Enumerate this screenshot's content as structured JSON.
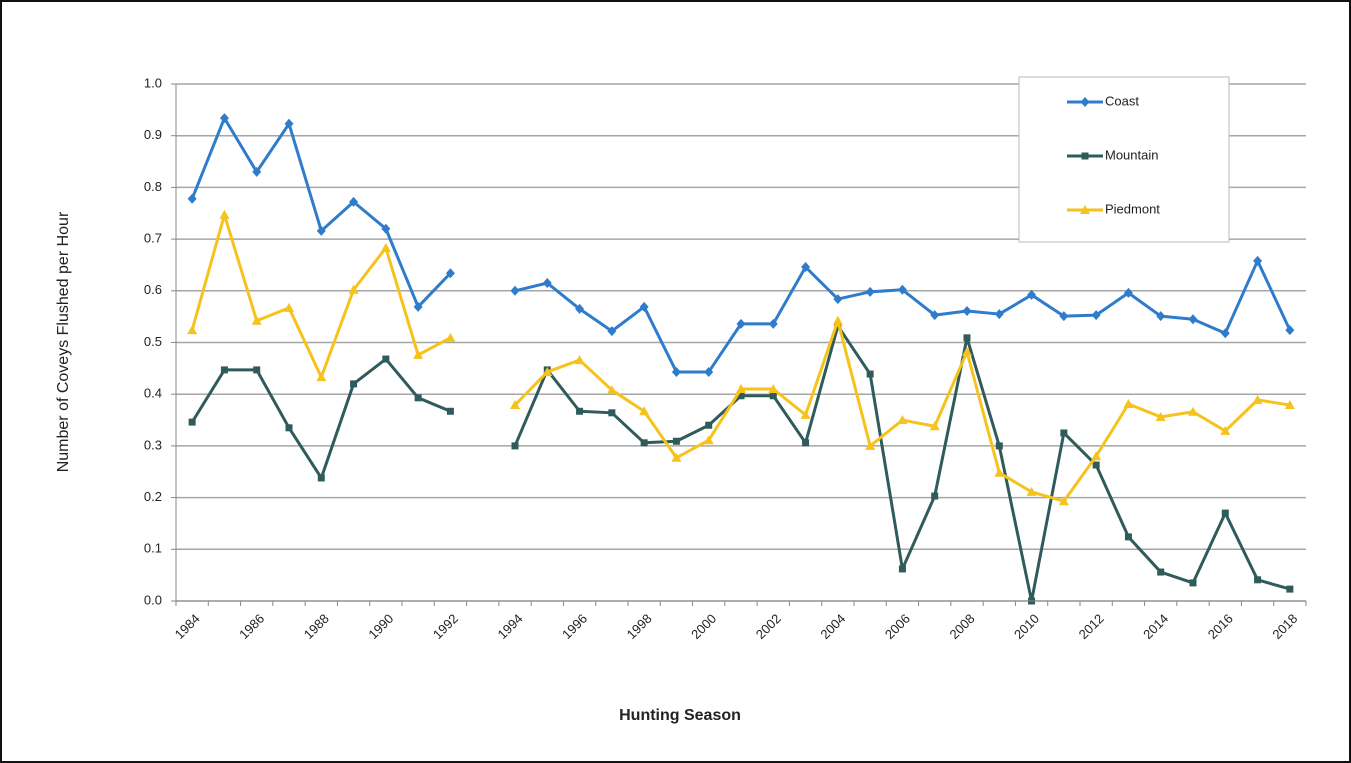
{
  "chart_data": {
    "type": "line",
    "x_label": "Hunting Season",
    "y_label": "Number of Coveys Flushed per Hour",
    "categories": [
      "1984",
      null,
      "1986",
      null,
      "1988",
      null,
      "1990",
      null,
      "1992",
      null,
      "1994",
      null,
      "1996",
      null,
      "1998",
      null,
      "2000",
      null,
      "2002",
      null,
      "2004",
      null,
      "2006",
      null,
      "2008",
      null,
      "2010",
      null,
      "2012",
      null,
      "2014",
      null,
      "2016",
      null,
      "2018"
    ],
    "series": [
      {
        "name": "Coast",
        "color": "#2f7ccc",
        "marker": "diamond",
        "values": [
          0.778,
          0.934,
          0.83,
          0.923,
          0.716,
          0.772,
          0.72,
          0.569,
          0.634,
          null,
          0.6,
          0.615,
          0.565,
          0.522,
          0.569,
          0.443,
          0.443,
          0.536,
          0.536,
          0.646,
          0.584,
          0.598,
          0.602,
          0.553,
          0.561,
          0.555,
          0.592,
          0.551,
          0.553,
          0.596,
          0.551,
          0.545,
          0.518,
          0.658,
          0.524
        ]
      },
      {
        "name": "Mountain",
        "color": "#2f5b5b",
        "marker": "square",
        "values": [
          0.346,
          0.447,
          0.447,
          0.335,
          0.238,
          0.42,
          0.468,
          0.393,
          0.367,
          null,
          0.3,
          0.447,
          0.367,
          0.364,
          0.306,
          0.309,
          0.34,
          0.397,
          0.397,
          0.306,
          0.532,
          0.439,
          0.062,
          0.203,
          0.509,
          0.3,
          0.0,
          0.325,
          0.263,
          0.124,
          0.056,
          0.035,
          0.17,
          0.041,
          0.023
        ]
      },
      {
        "name": "Piedmont",
        "color": "#f6c21c",
        "marker": "triangle",
        "values": [
          0.524,
          0.747,
          0.542,
          0.567,
          0.433,
          0.602,
          0.683,
          0.476,
          0.509,
          null,
          0.379,
          0.443,
          0.466,
          0.408,
          0.367,
          0.277,
          0.311,
          0.41,
          0.41,
          0.36,
          0.542,
          0.3,
          0.35,
          0.338,
          0.482,
          0.248,
          0.211,
          0.193,
          0.28,
          0.381,
          0.356,
          0.366,
          0.329,
          0.389,
          0.379
        ]
      }
    ],
    "ylim": [
      0,
      1
    ],
    "yticks": [
      {
        "value": 0,
        "label": "0.0"
      },
      {
        "value": 0.1,
        "label": "0.1"
      },
      {
        "value": 0.2,
        "label": "0.2"
      },
      {
        "value": 0.3,
        "label": "0.3"
      },
      {
        "value": 0.4,
        "label": "0.4"
      },
      {
        "value": 0.5,
        "label": "0.5"
      },
      {
        "value": 0.6,
        "label": "0.6"
      },
      {
        "value": 0.7,
        "label": "0.7"
      },
      {
        "value": 0.8,
        "label": "0.8"
      },
      {
        "value": 0.9,
        "label": "0.9"
      },
      {
        "value": 1,
        "label": "1.0"
      }
    ],
    "grid": true,
    "legend": "upper right"
  }
}
